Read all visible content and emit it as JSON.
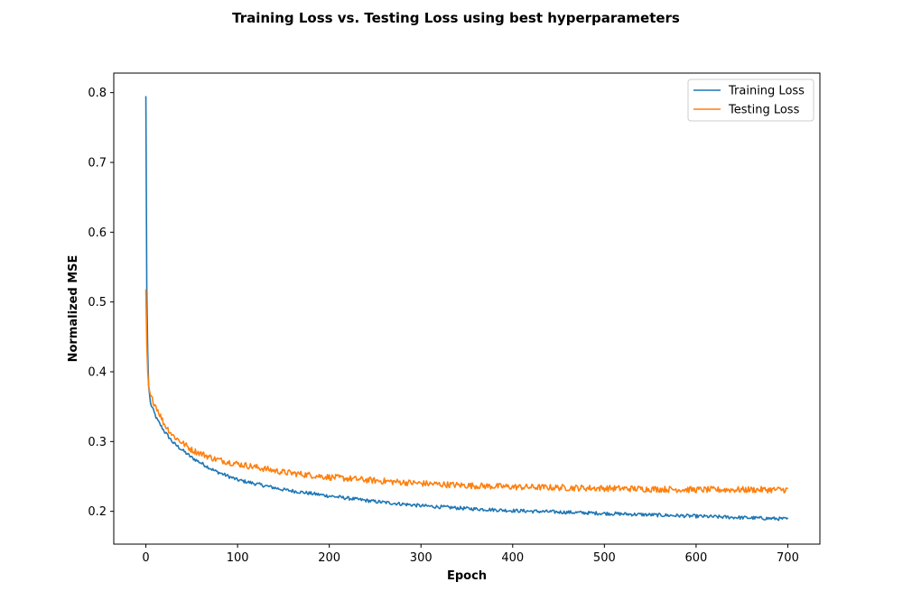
{
  "chart_data": {
    "type": "line",
    "title": "Training Loss vs. Testing Loss using best hyperparameters",
    "xlabel": "Epoch",
    "ylabel": "Normalized MSE",
    "xlim": [
      -35,
      735
    ],
    "ylim": [
      0.153,
      0.828
    ],
    "xticks": [
      0,
      100,
      200,
      300,
      400,
      500,
      600,
      700
    ],
    "yticks": [
      0.2,
      0.3,
      0.4,
      0.5,
      0.6,
      0.7,
      0.8
    ],
    "grid": false,
    "legend_position": "top-right",
    "epochs": 700,
    "series": [
      {
        "name": "Training Loss",
        "color": "#1f77b4",
        "anchors": {
          "x": [
            0,
            1,
            2,
            3,
            5,
            8,
            12,
            20,
            30,
            50,
            75,
            100,
            150,
            200,
            250,
            300,
            350,
            400,
            450,
            500,
            550,
            600,
            650,
            700
          ],
          "y": [
            0.795,
            0.52,
            0.43,
            0.38,
            0.355,
            0.345,
            0.332,
            0.315,
            0.298,
            0.277,
            0.258,
            0.245,
            0.231,
            0.222,
            0.214,
            0.208,
            0.204,
            0.201,
            0.199,
            0.197,
            0.195,
            0.193,
            0.191,
            0.189
          ]
        },
        "noise": 0.0025
      },
      {
        "name": "Testing Loss",
        "color": "#ff7f0e",
        "anchors": {
          "x": [
            0,
            1,
            2,
            3,
            5,
            8,
            12,
            20,
            30,
            50,
            75,
            100,
            150,
            200,
            250,
            300,
            350,
            400,
            450,
            500,
            550,
            600,
            650,
            700
          ],
          "y": [
            0.518,
            0.44,
            0.4,
            0.38,
            0.365,
            0.358,
            0.348,
            0.325,
            0.308,
            0.288,
            0.275,
            0.268,
            0.256,
            0.249,
            0.244,
            0.24,
            0.237,
            0.235,
            0.234,
            0.233,
            0.232,
            0.231,
            0.231,
            0.231
          ]
        },
        "noise": 0.0045
      }
    ]
  }
}
